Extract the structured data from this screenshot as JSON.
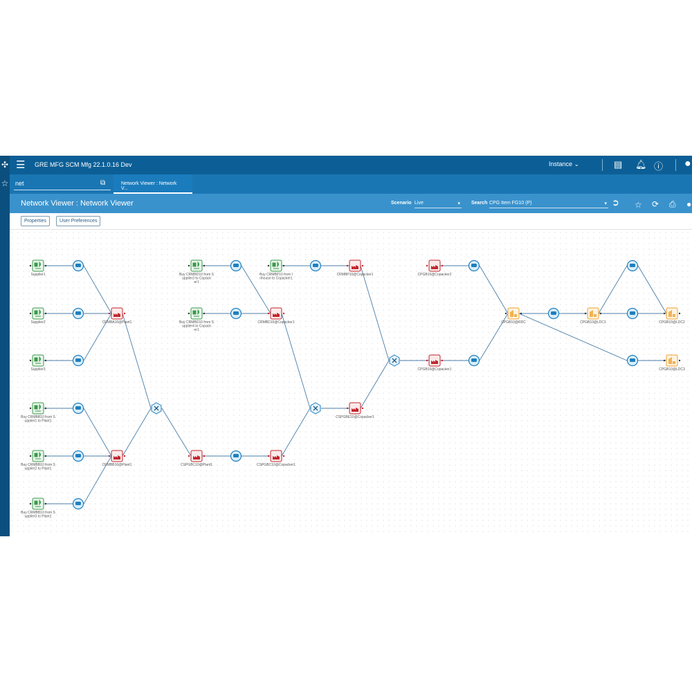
{
  "header": {
    "app_title": "GRE MFG SCM Mfg 22.1.0.16 Dev",
    "instance_label": "Instance"
  },
  "nav": {
    "search_value": "net",
    "tab_label": "Network Viewer : Network V..."
  },
  "page": {
    "title": "Network Viewer : Network Viewer",
    "scenario_label": "Scenario",
    "scenario_value": "Live",
    "search_label": "Search",
    "search_value": "CPG Item FG10 (P)"
  },
  "toolbar": {
    "properties": "Properties",
    "user_preferences": "User Preferences"
  },
  "colors": {
    "supplier": "#3a9a4a",
    "transport": "#1f7fbf",
    "plant": "#c0262d",
    "dc": "#f0a030",
    "edge": "#4a7ea8"
  },
  "network": {
    "nodes": [
      {
        "id": "s1",
        "type": "supplier",
        "label": [
          "Supplier1"
        ]
      },
      {
        "id": "s2",
        "type": "supplier",
        "label": [
          "Supplier2"
        ]
      },
      {
        "id": "s3",
        "type": "supplier",
        "label": [
          "Supplier3"
        ]
      },
      {
        "id": "bs1",
        "type": "supplier",
        "label": [
          "Buy CRMBB10 from S",
          "upplier1 to Plant1"
        ]
      },
      {
        "id": "bs2",
        "type": "supplier",
        "label": [
          "Buy CRMBB10 from S",
          "upplier2 to Plant1"
        ]
      },
      {
        "id": "bs3",
        "type": "supplier",
        "label": [
          "Buy CRMBB10 from S",
          "upplier3 to Plant1"
        ]
      },
      {
        "id": "t1",
        "type": "transport"
      },
      {
        "id": "t2",
        "type": "transport"
      },
      {
        "id": "t3",
        "type": "transport"
      },
      {
        "id": "t4",
        "type": "transport"
      },
      {
        "id": "t5",
        "type": "transport"
      },
      {
        "id": "t6",
        "type": "transport"
      },
      {
        "id": "a",
        "type": "plant",
        "label": [
          "CRMBA10@Plant1"
        ]
      },
      {
        "id": "b",
        "type": "plant",
        "label": [
          "CRMBB10@Plant1"
        ]
      },
      {
        "id": "m1",
        "type": "operation"
      },
      {
        "id": "c1",
        "type": "plant",
        "label": [
          "CSPGBC10@Plant1"
        ]
      },
      {
        "id": "t7",
        "type": "transport"
      },
      {
        "id": "c2",
        "type": "plant",
        "label": [
          "CSPGBC10@Copacker1"
        ]
      },
      {
        "id": "bd3",
        "type": "supplier",
        "label": [
          "Buy CRMBD10 from S",
          "upplier3 to Copack",
          "er1"
        ]
      },
      {
        "id": "t8",
        "type": "transport"
      },
      {
        "id": "bd4",
        "type": "supplier",
        "label": [
          "Buy CRMBD10 from S",
          "upplier4 to Copack",
          "er1"
        ]
      },
      {
        "id": "t9",
        "type": "transport"
      },
      {
        "id": "d",
        "type": "plant",
        "label": [
          "CRMBD10@Copacker1"
        ]
      },
      {
        "id": "bp",
        "type": "supplier",
        "label": [
          "Buy CRMBP10 from I",
          "nhouse to Copacker1"
        ]
      },
      {
        "id": "t10",
        "type": "transport"
      },
      {
        "id": "p",
        "type": "plant",
        "label": [
          "CRMBP10@Copacker1"
        ]
      },
      {
        "id": "m2",
        "type": "operation"
      },
      {
        "id": "e",
        "type": "plant",
        "label": [
          "CSPGBE10@Copacker1"
        ]
      },
      {
        "id": "m3",
        "type": "operation"
      },
      {
        "id": "f1",
        "type": "plant",
        "label": [
          "CPGB10@Copacker1"
        ]
      },
      {
        "id": "t11",
        "type": "transport"
      },
      {
        "id": "f2",
        "type": "plant",
        "label": [
          "CPGB10@Copacker2"
        ]
      },
      {
        "id": "t12",
        "type": "transport"
      },
      {
        "id": "rdc",
        "type": "dc",
        "label": [
          "CPGB10@RDC"
        ]
      },
      {
        "id": "t13",
        "type": "transport"
      },
      {
        "id": "ldc1",
        "type": "dc",
        "label": [
          "CPGB10@LDC1"
        ]
      },
      {
        "id": "t14",
        "type": "transport"
      },
      {
        "id": "t15",
        "type": "transport"
      },
      {
        "id": "t16",
        "type": "transport"
      },
      {
        "id": "ldc2",
        "type": "dc",
        "label": [
          "CPGB10@LDC2"
        ]
      },
      {
        "id": "ldc3",
        "type": "dc",
        "label": [
          "CPGB10@LDC3"
        ]
      }
    ],
    "edges": [
      [
        "s1",
        "t1"
      ],
      [
        "t1",
        "a"
      ],
      [
        "s2",
        "t2"
      ],
      [
        "t2",
        "a"
      ],
      [
        "s3",
        "t3"
      ],
      [
        "t3",
        "a"
      ],
      [
        "bs1",
        "t4"
      ],
      [
        "t4",
        "b"
      ],
      [
        "bs2",
        "t5"
      ],
      [
        "t5",
        "b"
      ],
      [
        "bs3",
        "t6"
      ],
      [
        "t6",
        "b"
      ],
      [
        "a",
        "m1"
      ],
      [
        "b",
        "m1"
      ],
      [
        "m1",
        "c1"
      ],
      [
        "c1",
        "t7"
      ],
      [
        "t7",
        "c2"
      ],
      [
        "bd3",
        "t8"
      ],
      [
        "t8",
        "d"
      ],
      [
        "bd4",
        "t9"
      ],
      [
        "t9",
        "d"
      ],
      [
        "bp",
        "t10"
      ],
      [
        "t10",
        "p"
      ],
      [
        "d",
        "m2"
      ],
      [
        "c2",
        "m2"
      ],
      [
        "m2",
        "e"
      ],
      [
        "p",
        "m3"
      ],
      [
        "e",
        "m3"
      ],
      [
        "m3",
        "f1"
      ],
      [
        "f1",
        "t11"
      ],
      [
        "t11",
        "rdc"
      ],
      [
        "f2",
        "t12"
      ],
      [
        "t12",
        "rdc"
      ],
      [
        "rdc",
        "t13"
      ],
      [
        "t13",
        "ldc1"
      ],
      [
        "ldc1",
        "t14"
      ],
      [
        "t14",
        "ldc2"
      ],
      [
        "ldc1",
        "t15"
      ],
      [
        "t15",
        "ldc2"
      ],
      [
        "rdc",
        "t16"
      ],
      [
        "t16",
        "ldc3"
      ]
    ]
  }
}
